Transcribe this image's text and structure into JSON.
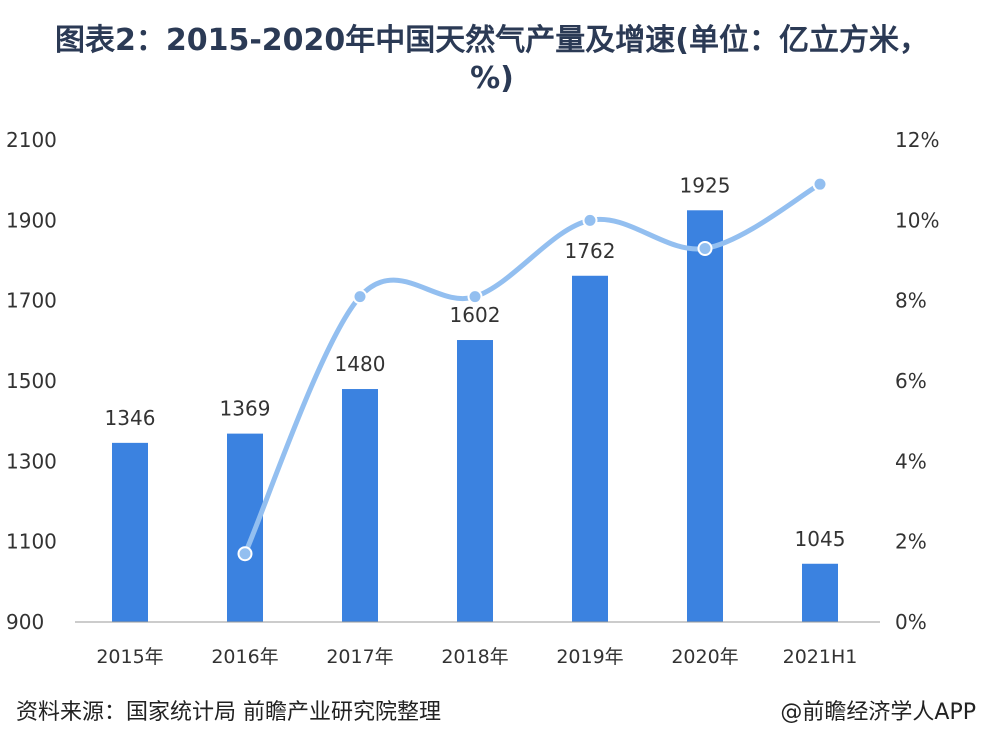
{
  "chart_data": {
    "type": "bar",
    "title": "图表2：2015-2020年中国天然气产量及增速(单位：亿立方米，%)",
    "categories": [
      "2015年",
      "2016年",
      "2017年",
      "2018年",
      "2019年",
      "2020年",
      "2021H1"
    ],
    "series": [
      {
        "kind": "bar",
        "axis": "left",
        "values": [
          1346,
          1369,
          1480,
          1602,
          1762,
          1925,
          1045
        ],
        "color": "#3b82e0"
      },
      {
        "kind": "line",
        "axis": "right",
        "values": [
          null,
          1.7,
          8.1,
          8.1,
          10.0,
          9.3,
          10.9
        ],
        "color": "#93bff0"
      }
    ],
    "y_left": {
      "range": [
        900,
        2100
      ],
      "ticks": [
        "900",
        "1100",
        "1300",
        "1500",
        "1700",
        "1900",
        "2100"
      ]
    },
    "y_right": {
      "range": [
        0,
        12
      ],
      "ticks": [
        "0%",
        "2%",
        "4%",
        "6%",
        "8%",
        "10%",
        "12%"
      ]
    },
    "grid": false,
    "legend": "none"
  },
  "footer": {
    "source": "资料来源：国家统计局 前瞻产业研究院整理",
    "brand": "@前瞻经济学人APP"
  }
}
